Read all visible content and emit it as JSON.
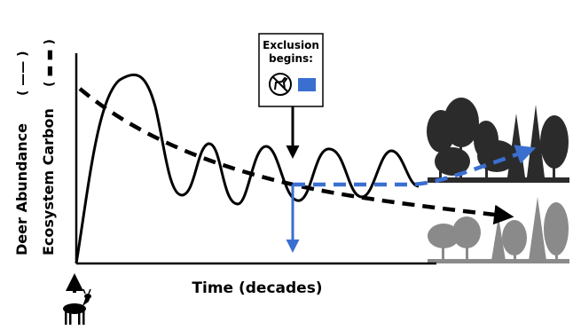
{
  "axes": {
    "x_label": "Time (decades)",
    "y_label_1": "Deer Abundance",
    "y_label_2": "Ecosystem Carbon",
    "y_label_1_key": "( —— )",
    "y_label_2_key": "( ▬ ▬ )"
  },
  "callout": {
    "line1": "Exclusion",
    "line2": "begins:"
  },
  "colors": {
    "deer_line": "#000000",
    "carbon_line": "#000000",
    "exclusion_line": "#3a6fd0",
    "forest_dense": "#2a2a2a",
    "forest_sparse": "#8c8c8c"
  },
  "icons": {
    "no_deer": "no-deer-icon",
    "deer": "deer-icon",
    "exclusion_swatch": "blue-square"
  }
}
